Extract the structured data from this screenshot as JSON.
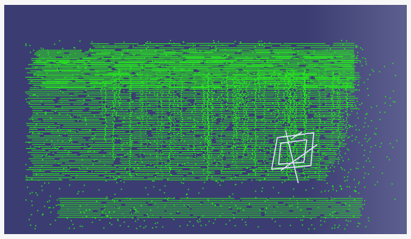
{
  "viewer": {
    "background_left": "#3b3d72",
    "background_right": "#5d5f8f",
    "point_color": "#27e81f",
    "marker_color": "#e6e6ff",
    "icons": {
      "camera_frustum": "camera-frustum-icon"
    }
  }
}
